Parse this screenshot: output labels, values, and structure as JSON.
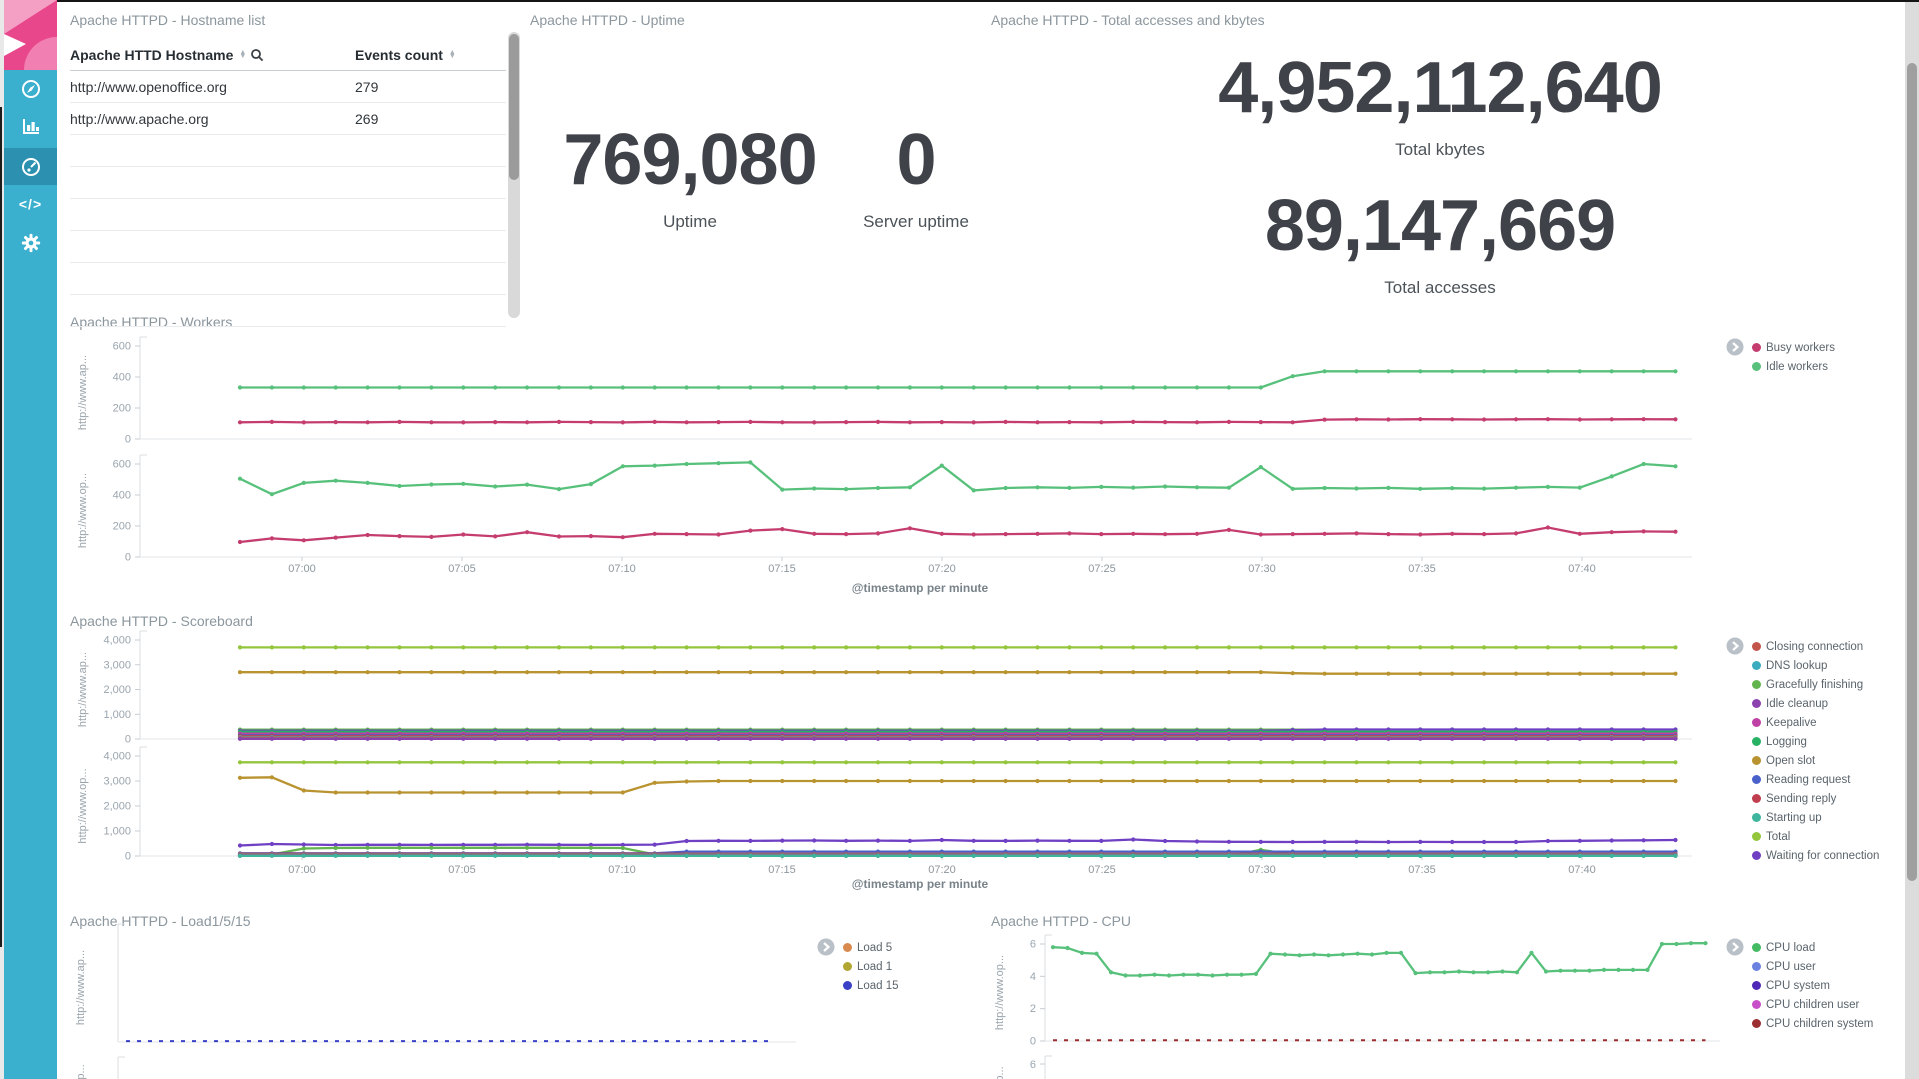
{
  "sidebar": {
    "items": [
      {
        "id": "discover",
        "icon": "compass-icon"
      },
      {
        "id": "visualize",
        "icon": "bar-chart-icon"
      },
      {
        "id": "dashboard",
        "icon": "gauge-icon",
        "active": true
      },
      {
        "id": "devtools",
        "icon": "code-icon",
        "glyph": "</>"
      },
      {
        "id": "settings",
        "icon": "gear-icon"
      }
    ]
  },
  "time_ticks": [
    "07:00",
    "07:05",
    "07:10",
    "07:15",
    "07:20",
    "07:25",
    "07:30",
    "07:35",
    "07:40"
  ],
  "panels": {
    "hostname_list": {
      "title": "Apache HTTPD - Hostname list",
      "columns": [
        {
          "label": "Apache HTTD Hostname"
        },
        {
          "label": "Events count"
        }
      ],
      "rows": [
        [
          "http://www.openoffice.org",
          "279"
        ],
        [
          "http://www.apache.org",
          "269"
        ]
      ]
    },
    "uptime": {
      "title": "Apache HTTPD - Uptime",
      "metrics": [
        {
          "value": "769,080",
          "label": "Uptime"
        },
        {
          "value": "0",
          "label": "Server uptime"
        }
      ]
    },
    "totals": {
      "title": "Apache HTTPD - Total accesses and kbytes",
      "metrics": [
        {
          "value": "4,952,112,640",
          "label": "Total kbytes"
        },
        {
          "value": "89,147,669",
          "label": "Total accesses"
        }
      ]
    },
    "workers": {
      "title": "Apache HTTPD - Workers",
      "x_title": "@timestamp per minute",
      "legend": [
        {
          "label": "Busy workers",
          "color": "#c43d6e"
        },
        {
          "label": "Idle workers",
          "color": "#57c17b"
        }
      ]
    },
    "scoreboard": {
      "title": "Apache HTTPD - Scoreboard",
      "x_title": "@timestamp per minute",
      "legend": [
        {
          "label": "Closing connection",
          "color": "#c2544b"
        },
        {
          "label": "DNS lookup",
          "color": "#3aacbe"
        },
        {
          "label": "Gracefully finishing",
          "color": "#62b54e"
        },
        {
          "label": "Idle cleanup",
          "color": "#8c42ae"
        },
        {
          "label": "Keepalive",
          "color": "#bf41a5"
        },
        {
          "label": "Logging",
          "color": "#27b163"
        },
        {
          "label": "Open slot",
          "color": "#b8932f"
        },
        {
          "label": "Reading request",
          "color": "#4961c9"
        },
        {
          "label": "Sending reply",
          "color": "#c03e4d"
        },
        {
          "label": "Starting up",
          "color": "#3eb69e"
        },
        {
          "label": "Total",
          "color": "#93c53d"
        },
        {
          "label": "Waiting for connection",
          "color": "#6f3fc4"
        }
      ]
    },
    "load": {
      "title": "Apache HTTPD - Load1/5/15",
      "legend": [
        {
          "label": "Load 5",
          "color": "#d88a4f"
        },
        {
          "label": "Load 1",
          "color": "#b0a631"
        },
        {
          "label": "Load 15",
          "color": "#3a41c6"
        }
      ],
      "partial_ylabel": "p..."
    },
    "cpu": {
      "title": "Apache HTTPD - CPU",
      "legend": [
        {
          "label": "CPU load",
          "color": "#44bb63"
        },
        {
          "label": "CPU user",
          "color": "#6b82e0"
        },
        {
          "label": "CPU system",
          "color": "#5028b8"
        },
        {
          "label": "CPU children user",
          "color": "#c74fc7"
        },
        {
          "label": "CPU children system",
          "color": "#9c2d31"
        }
      ],
      "partial_tick": "6",
      "partial_ylabel": "p..."
    }
  },
  "chart_data": [
    {
      "id": "workers_ap",
      "type": "line",
      "panel": "workers",
      "ylabel": "http://www.ap...",
      "ylim": [
        0,
        600
      ],
      "ytick_labels": [
        "600",
        "400",
        "200",
        "0"
      ],
      "yticks": [
        600,
        400,
        200,
        0
      ],
      "x_start": "06:58",
      "x_end": "07:43",
      "x_interval": "1m",
      "series": [
        {
          "name": "Idle workers",
          "color": "#57c17b",
          "values": [
            332,
            332,
            332,
            332,
            332,
            332,
            332,
            332,
            332,
            332,
            332,
            332,
            332,
            332,
            332,
            332,
            332,
            332,
            332,
            332,
            332,
            332,
            332,
            332,
            332,
            332,
            332,
            332,
            332,
            332,
            332,
            332,
            332,
            405,
            437,
            437,
            437,
            437,
            437,
            437,
            437,
            437,
            437,
            437,
            437,
            437
          ]
        },
        {
          "name": "Busy workers",
          "color": "#c43d6e",
          "values": [
            108,
            110,
            107,
            109,
            108,
            110,
            108,
            107,
            109,
            108,
            110,
            109,
            107,
            110,
            108,
            109,
            110,
            108,
            107,
            109,
            110,
            108,
            109,
            107,
            110,
            108,
            109,
            108,
            110,
            109,
            108,
            110,
            109,
            108,
            125,
            127,
            126,
            128,
            127,
            126,
            127,
            128,
            126,
            127,
            128,
            127
          ]
        }
      ]
    },
    {
      "id": "workers_op",
      "type": "line",
      "panel": "workers",
      "ylabel": "http://www.op...",
      "ylim": [
        0,
        600
      ],
      "ytick_labels": [
        "600",
        "400",
        "200",
        "0"
      ],
      "yticks": [
        600,
        400,
        200,
        0
      ],
      "x_start": "06:58",
      "x_end": "07:43",
      "x_interval": "1m",
      "series": [
        {
          "name": "Idle workers",
          "color": "#57c17b",
          "values": [
            505,
            405,
            478,
            492,
            478,
            458,
            468,
            472,
            455,
            467,
            438,
            470,
            585,
            590,
            600,
            605,
            610,
            435,
            442,
            438,
            445,
            450,
            590,
            430,
            445,
            450,
            446,
            452,
            448,
            455,
            450,
            447,
            580,
            440,
            445,
            442,
            446,
            440,
            444,
            441,
            447,
            452,
            448,
            520,
            600,
            585
          ]
        },
        {
          "name": "Busy workers",
          "color": "#c43d6e",
          "values": [
            97,
            120,
            108,
            125,
            142,
            135,
            130,
            145,
            133,
            160,
            132,
            135,
            128,
            150,
            148,
            145,
            170,
            180,
            150,
            148,
            152,
            185,
            150,
            145,
            148,
            150,
            152,
            148,
            150,
            147,
            150,
            175,
            145,
            148,
            150,
            152,
            148,
            145,
            150,
            148,
            152,
            190,
            150,
            160,
            165,
            163
          ]
        }
      ]
    },
    {
      "id": "scoreboard_ap",
      "type": "line",
      "panel": "scoreboard",
      "ylabel": "http://www.ap...",
      "ylim": [
        0,
        4000
      ],
      "ytick_labels": [
        "4,000",
        "3,000",
        "2,000",
        "1,000",
        "0"
      ],
      "yticks": [
        4000,
        3000,
        2000,
        1000,
        0
      ],
      "x_start": "06:58",
      "x_end": "07:43",
      "x_interval": "1m",
      "series": [
        {
          "name": "Total",
          "color": "#93c53d",
          "const": 3700
        },
        {
          "name": "Open slot",
          "color": "#b8932f",
          "values": [
            2700,
            2700,
            2700,
            2700,
            2700,
            2700,
            2700,
            2700,
            2700,
            2700,
            2700,
            2700,
            2700,
            2700,
            2700,
            2700,
            2700,
            2700,
            2700,
            2700,
            2700,
            2700,
            2700,
            2700,
            2700,
            2700,
            2700,
            2700,
            2700,
            2700,
            2700,
            2700,
            2700,
            2660,
            2640,
            2640,
            2640,
            2640,
            2640,
            2640,
            2640,
            2640,
            2640,
            2640,
            2640,
            2640
          ]
        },
        {
          "name": "Gracefully finishing",
          "color": "#62b54e",
          "const": 380
        },
        {
          "name": "Waiting for connection",
          "color": "#6f3fc4",
          "values": [
            330,
            330,
            330,
            330,
            330,
            330,
            330,
            330,
            330,
            330,
            330,
            330,
            330,
            330,
            330,
            330,
            330,
            330,
            330,
            330,
            330,
            330,
            330,
            330,
            330,
            330,
            330,
            330,
            330,
            330,
            330,
            330,
            330,
            360,
            385,
            385,
            385,
            385,
            385,
            385,
            385,
            385,
            385,
            385,
            385,
            385
          ]
        },
        {
          "name": "Logging",
          "color": "#27b163",
          "const": 290
        },
        {
          "name": "Keepalive",
          "color": "#bf41a5",
          "const": 220
        },
        {
          "name": "Reading request",
          "color": "#4961c9",
          "const": 150
        },
        {
          "name": "Sending reply",
          "color": "#c03e4d",
          "const": 120
        },
        {
          "name": "DNS lookup",
          "color": "#3aacbe",
          "const": 80
        },
        {
          "name": "Closing connection",
          "color": "#c2544b",
          "const": 55
        },
        {
          "name": "Starting up",
          "color": "#3eb69e",
          "const": 15
        },
        {
          "name": "Idle cleanup",
          "color": "#8c42ae",
          "const": 8
        }
      ]
    },
    {
      "id": "scoreboard_op",
      "type": "line",
      "panel": "scoreboard",
      "ylabel": "http://www.op...",
      "ylim": [
        0,
        4000
      ],
      "ytick_labels": [
        "4,000",
        "3,000",
        "2,000",
        "1,000",
        "0"
      ],
      "yticks": [
        4000,
        3000,
        2000,
        1000,
        0
      ],
      "x_start": "06:58",
      "x_end": "07:43",
      "x_interval": "1m",
      "series": [
        {
          "name": "Total",
          "color": "#93c53d",
          "const": 3750
        },
        {
          "name": "Open slot",
          "color": "#b8932f",
          "values": [
            3130,
            3150,
            2620,
            2540,
            2540,
            2540,
            2540,
            2540,
            2540,
            2540,
            2540,
            2540,
            2540,
            2930,
            2980,
            3000,
            3000,
            3000,
            3000,
            3000,
            3000,
            3000,
            3000,
            3000,
            3000,
            3000,
            3000,
            3000,
            3000,
            3000,
            3000,
            3000,
            3000,
            3000,
            3000,
            3000,
            3000,
            3000,
            3000,
            3000,
            3000,
            3000,
            3000,
            3000,
            3000,
            3000
          ]
        },
        {
          "name": "Waiting for connection",
          "color": "#6f3fc4",
          "values": [
            420,
            480,
            460,
            440,
            450,
            450,
            445,
            450,
            448,
            452,
            450,
            446,
            450,
            455,
            600,
            610,
            605,
            615,
            620,
            610,
            615,
            605,
            640,
            610,
            605,
            615,
            610,
            605,
            660,
            600,
            580,
            570,
            565,
            560,
            565,
            570,
            560,
            565,
            560,
            558,
            562,
            600,
            610,
            620,
            630,
            640
          ]
        },
        {
          "name": "Gracefully finishing",
          "color": "#62b54e",
          "values": [
            5,
            60,
            300,
            320,
            330,
            330,
            330,
            330,
            330,
            330,
            330,
            330,
            320,
            60,
            5,
            5,
            5,
            5,
            5,
            5,
            5,
            5,
            5,
            5,
            5,
            5,
            5,
            5,
            5,
            5,
            5,
            5,
            250,
            60,
            5,
            5,
            5,
            5,
            5,
            5,
            5,
            5,
            5,
            5,
            5,
            5
          ]
        },
        {
          "name": "Reading request",
          "color": "#4961c9",
          "values": [
            110,
            110,
            110,
            110,
            110,
            110,
            110,
            110,
            110,
            110,
            110,
            110,
            110,
            110,
            175,
            175,
            175,
            175,
            175,
            175,
            175,
            175,
            175,
            175,
            175,
            175,
            175,
            175,
            175,
            175,
            175,
            175,
            175,
            175,
            175,
            175,
            175,
            175,
            175,
            175,
            175,
            175,
            175,
            175,
            175,
            175
          ]
        },
        {
          "name": "Sending reply",
          "color": "#c03e4d",
          "const": 90
        },
        {
          "name": "DNS lookup",
          "color": "#3aacbe",
          "const": 60
        },
        {
          "name": "Closing connection",
          "color": "#c2544b",
          "const": 45
        },
        {
          "name": "Keepalive",
          "color": "#bf41a5",
          "const": 25
        },
        {
          "name": "Logging",
          "color": "#27b163",
          "const": 18
        },
        {
          "name": "Idle cleanup",
          "color": "#8c42ae",
          "const": 12
        },
        {
          "name": "Starting up",
          "color": "#3eb69e",
          "const": 8
        }
      ]
    },
    {
      "id": "load_ap",
      "type": "line",
      "panel": "load",
      "ylabel": "http://www.ap...",
      "ylim": [
        0,
        6
      ],
      "ytick_labels": [],
      "yticks": [],
      "x_start": "06:58",
      "x_end": "07:43",
      "x_interval": "1m",
      "series": [
        {
          "name": "Load 15",
          "color": "#3a41c6",
          "const": 0.05,
          "dashed": true
        }
      ]
    },
    {
      "id": "cpu_op",
      "type": "line",
      "panel": "cpu",
      "ylabel": "http://www.op...",
      "ylim": [
        0,
        6
      ],
      "ytick_labels": [
        "6",
        "4",
        "2",
        "0"
      ],
      "yticks": [
        6,
        4,
        2,
        0
      ],
      "x_start": "06:58",
      "x_end": "07:43",
      "x_interval": "1m",
      "series": [
        {
          "name": "CPU load",
          "color": "#57c17b",
          "values": [
            5.8,
            5.75,
            5.45,
            5.4,
            4.25,
            4.05,
            4.05,
            4.1,
            4.05,
            4.1,
            4.1,
            4.05,
            4.1,
            4.1,
            4.15,
            5.4,
            5.35,
            5.3,
            5.35,
            5.3,
            5.35,
            5.4,
            5.35,
            5.45,
            5.45,
            4.2,
            4.25,
            4.25,
            4.3,
            4.25,
            4.25,
            4.3,
            4.25,
            5.45,
            4.3,
            4.35,
            4.35,
            4.35,
            4.4,
            4.4,
            4.4,
            4.4,
            6.0,
            6.0,
            6.05,
            6.05
          ]
        },
        {
          "name": "CPU children system",
          "color": "#9c2d31",
          "const": 0.05,
          "dashed": true
        }
      ]
    }
  ]
}
